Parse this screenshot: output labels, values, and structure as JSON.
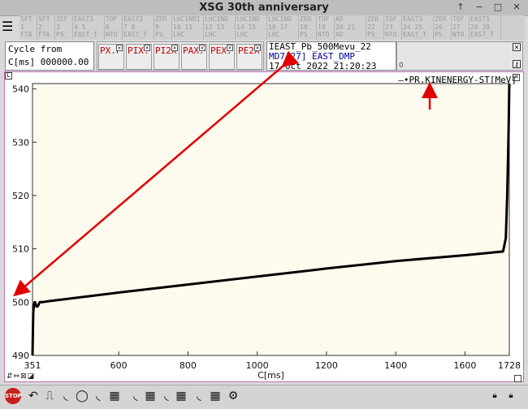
{
  "window": {
    "title": "XSG 30th anniversary"
  },
  "timing_strip": [
    {
      "l1": "SFT",
      "l2": "1",
      "l3": "FTA"
    },
    {
      "l1": "SFT",
      "l2": "2",
      "l3": "FTA"
    },
    {
      "l1": "ZEF",
      "l2": "3",
      "l3": "PS_"
    },
    {
      "l1": "EAST3",
      "l2": "4 5",
      "l3": "EAST_T",
      "wide": true
    },
    {
      "l1": "TOF",
      "l2": "6",
      "l3": "NTO"
    },
    {
      "l1": "EAST2",
      "l2": "7 8",
      "l3": "EAST_T",
      "wide": true
    },
    {
      "l1": "ZER",
      "l2": "9",
      "l3": "PS_"
    },
    {
      "l1": "LHCINDI",
      "l2": "10 11",
      "l3": "LHC",
      "wide": true
    },
    {
      "l1": "LHCIND",
      "l2": "12 13",
      "l3": "LHC",
      "wide": true
    },
    {
      "l1": "LHCIND",
      "l2": "14 15",
      "l3": "LHC",
      "wide": true
    },
    {
      "l1": "LHCIND",
      "l2": "16 17",
      "l3": "LHC",
      "wide": true
    },
    {
      "l1": "ZER",
      "l2": "18",
      "l3": "PS_"
    },
    {
      "l1": "TOF",
      "l2": "19",
      "l3": "NTO"
    },
    {
      "l1": "AD",
      "l2": "20 21",
      "l3": "AD",
      "wide": true
    },
    {
      "l1": "ZER",
      "l2": "22",
      "l3": "PS_"
    },
    {
      "l1": "TOF",
      "l2": "23",
      "l3": "NTO"
    },
    {
      "l1": "EAST3",
      "l2": "24 25",
      "l3": "EAST_T",
      "wide": true
    },
    {
      "l1": "ZER",
      "l2": "26",
      "l3": "PS_"
    },
    {
      "l1": "TOF",
      "l2": "27",
      "l3": "NTO"
    },
    {
      "l1": "EAST1",
      "l2": "28 29",
      "l3": "EAST_T",
      "wide": true
    }
  ],
  "cycle": {
    "label": "Cycle from",
    "value": "C[ms] 000000.00"
  },
  "pls_buttons": [
    "PX.P",
    "PIX.",
    "PI2X",
    "PAX.",
    "PEX.",
    "PE2X"
  ],
  "info": {
    "line1": "IEAST_Pb_500Mevu_22",
    "line2": "MD7[27] EAST_DMP",
    "line3": "17 Oct 2022 21:20:23"
  },
  "ctrl": {
    "zero": "0"
  },
  "legend": {
    "label": "PR.KINENERGY-ST[MeV]"
  },
  "chart_data": {
    "type": "line",
    "xlabel": "C[ms]",
    "ylabel": "",
    "xlim": [
      351,
      1728
    ],
    "ylim": [
      490,
      541
    ],
    "x_ticks": [
      "351",
      "600",
      "800",
      "1000",
      "1200",
      "1400",
      "1600",
      "1728"
    ],
    "y_ticks": [
      "490",
      "500",
      "510",
      "520",
      "530",
      "540"
    ],
    "series": [
      {
        "name": "PR.KINENERGY-ST[MeV]",
        "x": [
          351,
          353,
          355,
          358,
          362,
          366,
          372,
          380,
          400,
          600,
          800,
          1000,
          1200,
          1400,
          1600,
          1710,
          1718,
          1722,
          1726,
          1728
        ],
        "y": [
          490,
          498,
          499.5,
          500,
          499.2,
          499.2,
          500,
          500,
          500.2,
          501.8,
          503.3,
          504.8,
          506.3,
          507.7,
          508.8,
          509.5,
          512,
          520,
          532,
          541
        ]
      }
    ],
    "color": "#000000",
    "background": "#fffaee"
  },
  "bottom_tools": [
    "stop-icon",
    "rising-edge-icon",
    "pulse-icon",
    "moon-icon",
    "oval-icon",
    "half-moon-icon",
    "grid-icon",
    "spacer",
    "half-moon2-icon",
    "bars-icon",
    "half-moon3-icon",
    "bars2-icon",
    "bars3-icon",
    "gear-icon"
  ]
}
